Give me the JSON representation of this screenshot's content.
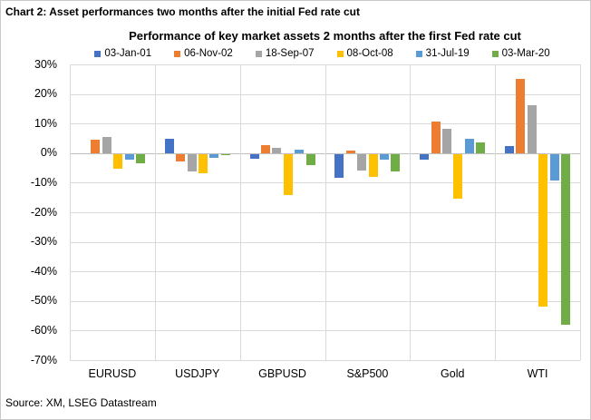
{
  "header": {
    "title": "Chart 2: Asset performances two months after the initial Fed rate cut"
  },
  "source": "Source: XM, LSEG Datastream",
  "chart_data": {
    "type": "bar",
    "title": "Performance of key market assets 2 months after the first Fed rate cut",
    "categories": [
      "EURUSD",
      "USDJPY",
      "GBPUSD",
      "S&P500",
      "Gold",
      "WTI"
    ],
    "series": [
      {
        "name": "03-Jan-01",
        "color": "#4472C4",
        "values": [
          0,
          5.0,
          -1.6,
          -7.9,
          -2.0,
          2.3
        ]
      },
      {
        "name": "06-Nov-02",
        "color": "#ED7D31",
        "values": [
          4.6,
          -2.5,
          2.8,
          1.0,
          10.6,
          25.0
        ]
      },
      {
        "name": "18-Sep-07",
        "color": "#A5A5A5",
        "values": [
          5.5,
          -5.9,
          1.7,
          -5.7,
          8.2,
          16.3
        ]
      },
      {
        "name": "08-Oct-08",
        "color": "#FFC000",
        "values": [
          -5.1,
          -6.5,
          -13.9,
          -7.7,
          -15.1,
          -51.7
        ]
      },
      {
        "name": "31-Jul-19",
        "color": "#5B9BD5",
        "values": [
          -1.8,
          -1.3,
          1.3,
          -2.0,
          4.7,
          -9.0
        ]
      },
      {
        "name": "03-Mar-20",
        "color": "#70AD47",
        "values": [
          -3.0,
          -0.5,
          -3.6,
          -5.9,
          3.5,
          -57.8
        ]
      }
    ],
    "y_axis": {
      "min": -70,
      "max": 30,
      "step": 10,
      "tick_labels": [
        "30%",
        "20%",
        "10%",
        "0%",
        "-10%",
        "-20%",
        "-30%",
        "-40%",
        "-50%",
        "-60%",
        "-70%"
      ]
    },
    "legend_position": "top",
    "grid": true,
    "gridline_color": "#D9D9D9",
    "zero_line_color": "#BFBFBF"
  }
}
